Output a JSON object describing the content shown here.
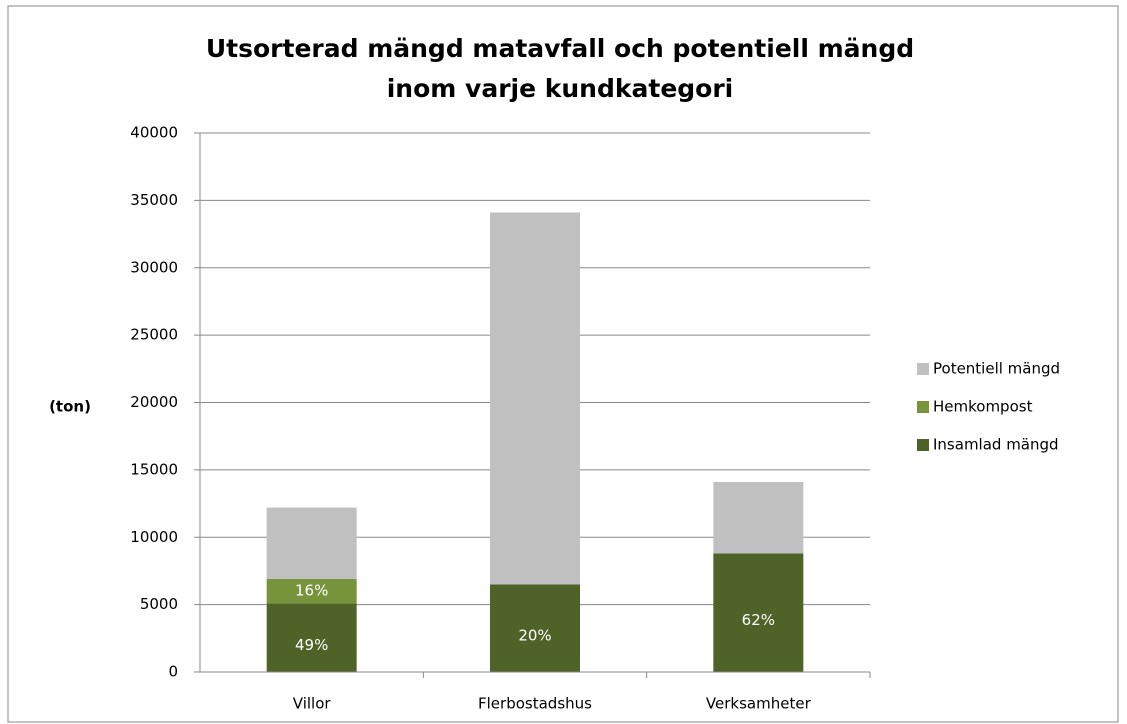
{
  "chart_data": {
    "type": "stacked_bar",
    "title": [
      "Utsorterad mängd matavfall och potentiell mängd",
      "inom varje kundkategori"
    ],
    "y_label": "(ton)",
    "categories": [
      "Villor",
      "Flerbostadshus",
      "Verksamheter"
    ],
    "series": [
      {
        "name": "Insamlad mängd",
        "color": "#4f6228",
        "values": [
          5100,
          6500,
          8800
        ],
        "labels": [
          "49%",
          "20%",
          "62%"
        ]
      },
      {
        "name": "Hemkompost",
        "color": "#77933c",
        "values": [
          1800,
          0,
          0
        ],
        "labels": [
          "16%",
          null,
          null
        ]
      },
      {
        "name": "Potentiell mängd",
        "color": "#c0c0c0",
        "values": [
          5300,
          27600,
          5300
        ]
      }
    ],
    "ylim": [
      0,
      40000
    ],
    "yticks": [
      0,
      5000,
      10000,
      15000,
      20000,
      25000,
      30000,
      35000,
      40000
    ],
    "grid": true,
    "legend": "right"
  }
}
